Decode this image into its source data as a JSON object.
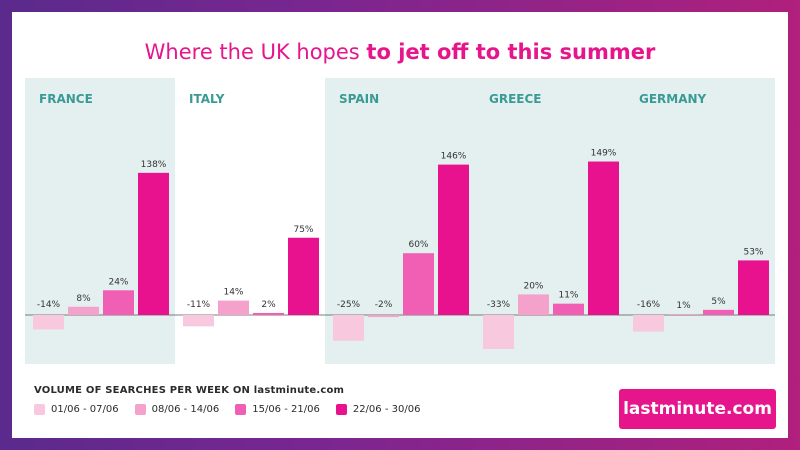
{
  "title": {
    "normal": "Where the UK hopes ",
    "bold": "to jet off to this summer"
  },
  "legend_title": "VOLUME OF SEARCHES PER WEEK ON lastminute.com",
  "logo_text": "lastminute.com",
  "colors": {
    "title": "#e6158c",
    "panel_shaded": "#e3f0ef",
    "country_label": "#3a9a96",
    "series": [
      "#f8c8df",
      "#f4a2cc",
      "#f05fb3",
      "#e8128e"
    ]
  },
  "chart_data": {
    "type": "bar",
    "categories": [
      "FRANCE",
      "ITALY",
      "SPAIN",
      "GREECE",
      "GERMANY"
    ],
    "series": [
      {
        "name": "01/06 - 07/06",
        "values": [
          -14,
          -11,
          -25,
          -33,
          -16
        ],
        "labels": [
          "-14%",
          "-11%",
          "-25%",
          "-33%",
          "-16%"
        ]
      },
      {
        "name": "08/06 - 14/06",
        "values": [
          8,
          14,
          -2,
          20,
          1
        ],
        "labels": [
          "8%",
          "14%",
          "-2%",
          "20%",
          "1%"
        ]
      },
      {
        "name": "15/06 - 21/06",
        "values": [
          24,
          2,
          60,
          11,
          5
        ],
        "labels": [
          "24%",
          "2%",
          "60%",
          "11%",
          "5%"
        ]
      },
      {
        "name": "22/06 - 30/06",
        "values": [
          138,
          75,
          146,
          149,
          53
        ],
        "labels": [
          "138%",
          "75%",
          "146%",
          "149%",
          "53%"
        ]
      }
    ],
    "shaded_panels": [
      true,
      false,
      true,
      true,
      true
    ],
    "ylim": [
      -40,
      165
    ],
    "grid": false
  }
}
